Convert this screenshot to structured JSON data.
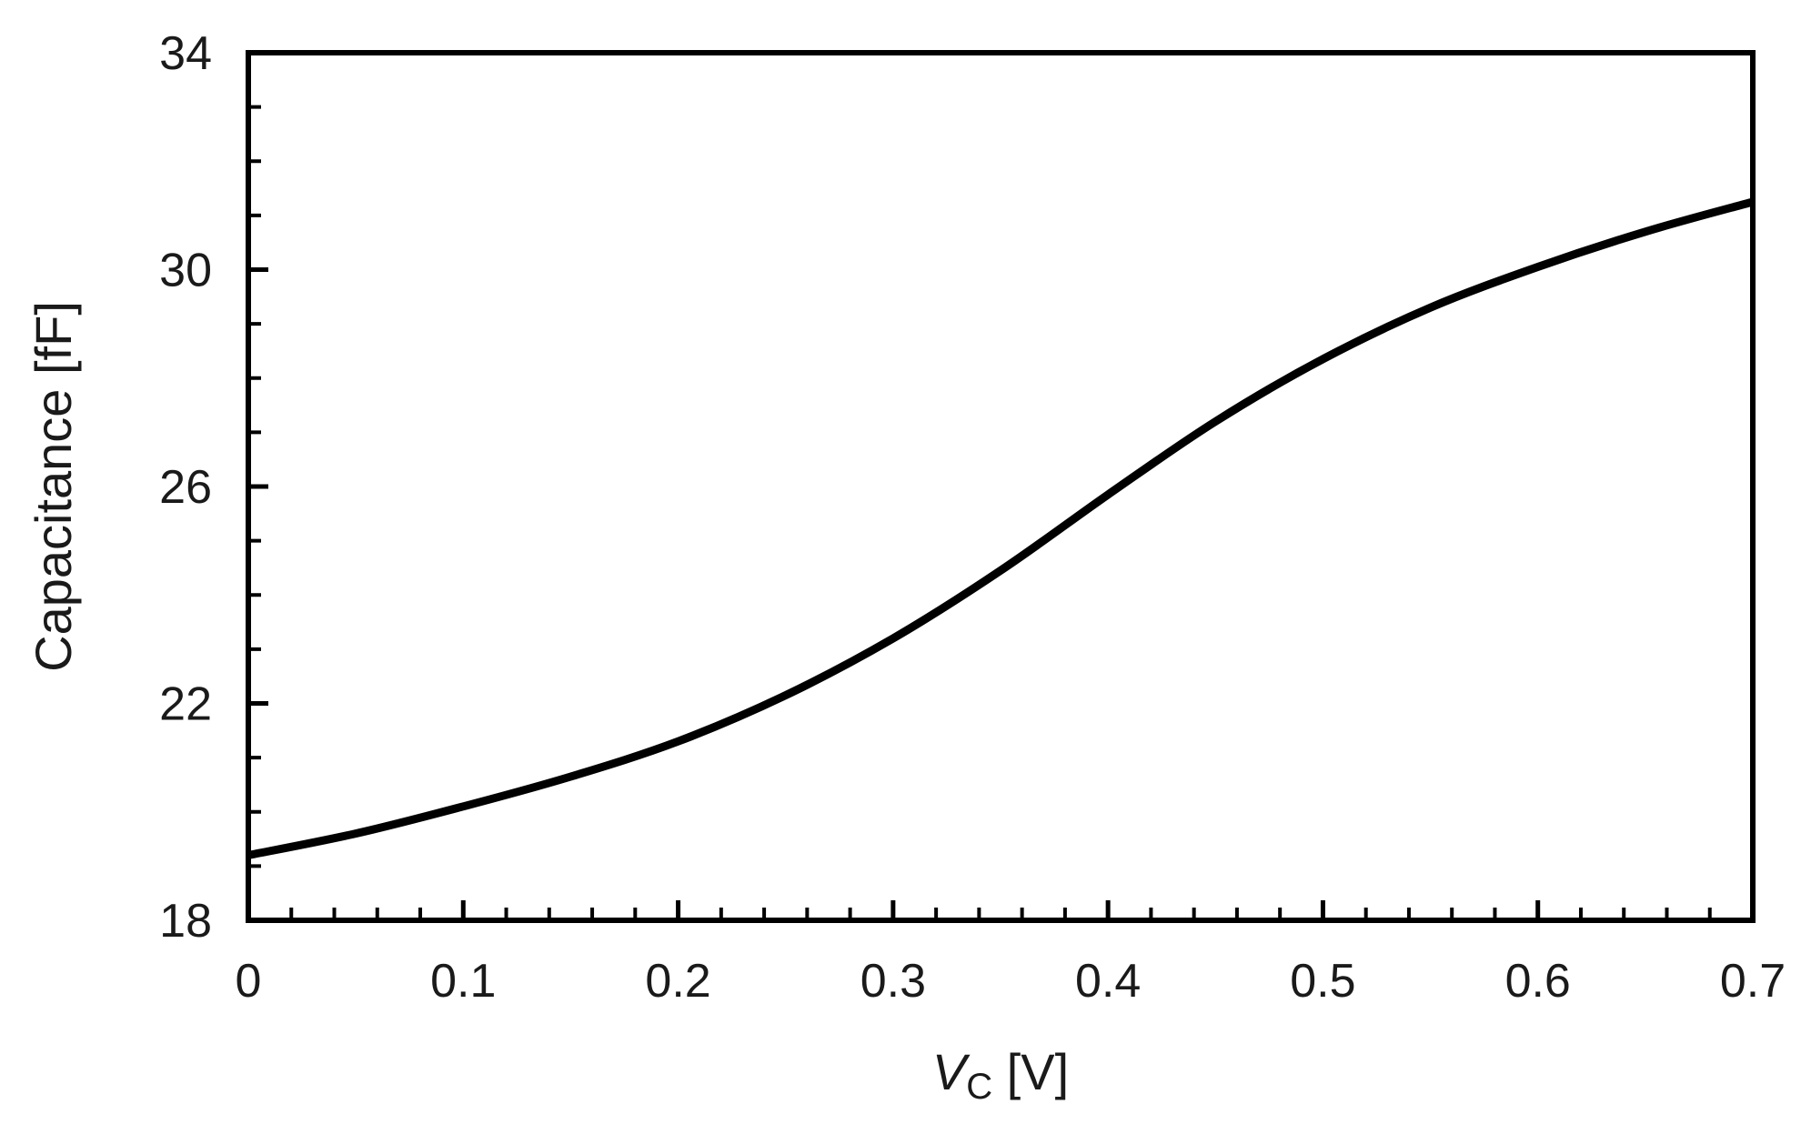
{
  "chart_data": {
    "type": "line",
    "title": "",
    "xlabel": {
      "main": "V",
      "sub": "C",
      "unit": " [V]"
    },
    "ylabel": "Capacitance [fF]",
    "xlim": [
      0,
      0.7
    ],
    "ylim": [
      18,
      34
    ],
    "xticks": [
      0,
      0.1,
      0.2,
      0.3,
      0.4,
      0.5,
      0.6,
      0.7
    ],
    "xtick_labels": [
      "0",
      "0.1",
      "0.2",
      "0.3",
      "0.4",
      "0.5",
      "0.6",
      "0.7"
    ],
    "yticks": [
      18,
      22,
      26,
      30,
      34
    ],
    "ytick_labels": [
      "18",
      "22",
      "26",
      "30",
      "34"
    ],
    "x_minor_step": 0.02,
    "y_minor_step": 1,
    "grid": false,
    "legend": "none",
    "line_color": "#000000",
    "series": [
      {
        "x": [
          0,
          0.05,
          0.1,
          0.15,
          0.2,
          0.25,
          0.3,
          0.35,
          0.4,
          0.45,
          0.5,
          0.55,
          0.6,
          0.65,
          0.7
        ],
        "values": [
          19.2,
          19.6,
          20.1,
          20.65,
          21.3,
          22.15,
          23.2,
          24.45,
          25.85,
          27.2,
          28.35,
          29.3,
          30.05,
          30.7,
          31.25
        ]
      }
    ]
  }
}
